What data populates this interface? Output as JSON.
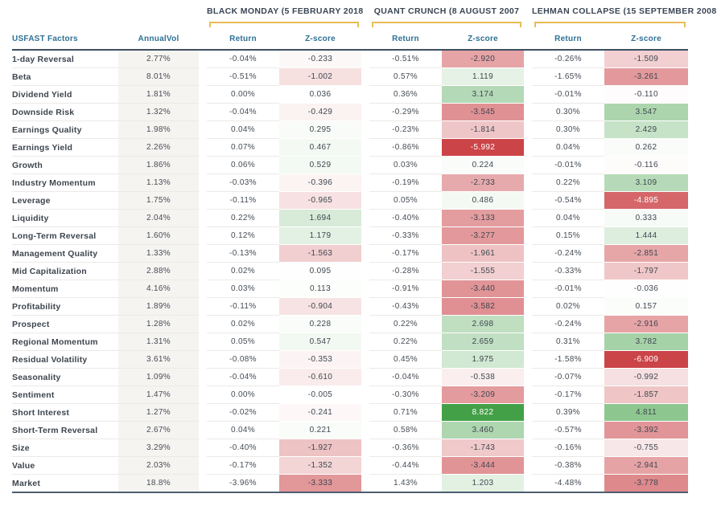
{
  "colors": {
    "header_blue": "#2e7094",
    "title_navy": "#3a4554",
    "bracket_gold": "#e9bc55",
    "positive_green_full": "#43a047",
    "negative_red_full": "#cb4448",
    "annualvol_bg": "#f6f4f1",
    "header_rule": "#3e4f60",
    "bottom_rule": "#4c5d70"
  },
  "chart_data": {
    "type": "table",
    "corner_header": "USFAST Factors",
    "annual_vol_header": "AnnualVol",
    "sub_headers": [
      "Return",
      "Z-score"
    ],
    "event_groups": [
      "BLACK MONDAY (5 FEBRUARY 2018",
      "QUANT CRUNCH (8 AUGUST 2007",
      "LEHMAN COLLAPSE (15 SEPTEMBER 2008"
    ],
    "zscore_color_scale": {
      "negative_max_abs": 6,
      "positive_max_abs": 8,
      "neutral": "#ffffff"
    },
    "rows": [
      {
        "factor": "1-day Reversal",
        "annual_vol": "2.77%",
        "values": [
          {
            "return": "-0.04%",
            "z_score": -0.233
          },
          {
            "return": "-0.51%",
            "z_score": -2.92
          },
          {
            "return": "-0.26%",
            "z_score": -1.509
          }
        ]
      },
      {
        "factor": "Beta",
        "annual_vol": "8.01%",
        "values": [
          {
            "return": "-0.51%",
            "z_score": -1.002
          },
          {
            "return": "0.57%",
            "z_score": 1.119
          },
          {
            "return": "-1.65%",
            "z_score": -3.261
          }
        ]
      },
      {
        "factor": "Dividend Yield",
        "annual_vol": "1.81%",
        "values": [
          {
            "return": "0.00%",
            "z_score": 0.036
          },
          {
            "return": "0.36%",
            "z_score": 3.174
          },
          {
            "return": "-0.01%",
            "z_score": -0.11
          }
        ]
      },
      {
        "factor": "Downside Risk",
        "annual_vol": "1.32%",
        "values": [
          {
            "return": "-0.04%",
            "z_score": -0.429
          },
          {
            "return": "-0.29%",
            "z_score": -3.545
          },
          {
            "return": "0.30%",
            "z_score": 3.547
          }
        ]
      },
      {
        "factor": "Earnings Quality",
        "annual_vol": "1.98%",
        "values": [
          {
            "return": "0.04%",
            "z_score": 0.295
          },
          {
            "return": "-0.23%",
            "z_score": -1.814
          },
          {
            "return": "0.30%",
            "z_score": 2.429
          }
        ]
      },
      {
        "factor": "Earnings Yield",
        "annual_vol": "2.26%",
        "values": [
          {
            "return": "0.07%",
            "z_score": 0.467
          },
          {
            "return": "-0.86%",
            "z_score": -5.992
          },
          {
            "return": "0.04%",
            "z_score": 0.262
          }
        ]
      },
      {
        "factor": "Growth",
        "annual_vol": "1.86%",
        "values": [
          {
            "return": "0.06%",
            "z_score": 0.529
          },
          {
            "return": "0.03%",
            "z_score": 0.224
          },
          {
            "return": "-0.01%",
            "z_score": -0.116
          }
        ]
      },
      {
        "factor": "Industry Momentum",
        "annual_vol": "1.13%",
        "values": [
          {
            "return": "-0.03%",
            "z_score": -0.396
          },
          {
            "return": "-0.19%",
            "z_score": -2.733
          },
          {
            "return": "0.22%",
            "z_score": 3.109
          }
        ]
      },
      {
        "factor": "Leverage",
        "annual_vol": "1.75%",
        "values": [
          {
            "return": "-0.11%",
            "z_score": -0.965
          },
          {
            "return": "0.05%",
            "z_score": 0.486
          },
          {
            "return": "-0.54%",
            "z_score": -4.895
          }
        ]
      },
      {
        "factor": "Liquidity",
        "annual_vol": "2.04%",
        "values": [
          {
            "return": "0.22%",
            "z_score": 1.694
          },
          {
            "return": "-0.40%",
            "z_score": -3.133
          },
          {
            "return": "0.04%",
            "z_score": 0.333
          }
        ]
      },
      {
        "factor": "Long-Term Reversal",
        "annual_vol": "1.60%",
        "values": [
          {
            "return": "0.12%",
            "z_score": 1.179
          },
          {
            "return": "-0.33%",
            "z_score": -3.277
          },
          {
            "return": "0.15%",
            "z_score": 1.444
          }
        ]
      },
      {
        "factor": "Management Quality",
        "annual_vol": "1.33%",
        "values": [
          {
            "return": "-0.13%",
            "z_score": -1.563
          },
          {
            "return": "-0.17%",
            "z_score": -1.961
          },
          {
            "return": "-0.24%",
            "z_score": -2.851
          }
        ]
      },
      {
        "factor": "Mid Capitalization",
        "annual_vol": "2.88%",
        "values": [
          {
            "return": "0.02%",
            "z_score": 0.095
          },
          {
            "return": "-0.28%",
            "z_score": -1.555
          },
          {
            "return": "-0.33%",
            "z_score": -1.797
          }
        ]
      },
      {
        "factor": "Momentum",
        "annual_vol": "4.16%",
        "values": [
          {
            "return": "0.03%",
            "z_score": 0.113
          },
          {
            "return": "-0.91%",
            "z_score": -3.44
          },
          {
            "return": "-0.01%",
            "z_score": -0.036
          }
        ]
      },
      {
        "factor": "Profitability",
        "annual_vol": "1.89%",
        "values": [
          {
            "return": "-0.11%",
            "z_score": -0.904
          },
          {
            "return": "-0.43%",
            "z_score": -3.582
          },
          {
            "return": "0.02%",
            "z_score": 0.157
          }
        ]
      },
      {
        "factor": "Prospect",
        "annual_vol": "1.28%",
        "values": [
          {
            "return": "0.02%",
            "z_score": 0.228
          },
          {
            "return": "0.22%",
            "z_score": 2.698
          },
          {
            "return": "-0.24%",
            "z_score": -2.916
          }
        ]
      },
      {
        "factor": "Regional Momentum",
        "annual_vol": "1.31%",
        "values": [
          {
            "return": "0.05%",
            "z_score": 0.547
          },
          {
            "return": "0.22%",
            "z_score": 2.659
          },
          {
            "return": "0.31%",
            "z_score": 3.782
          }
        ]
      },
      {
        "factor": "Residual Volatility",
        "annual_vol": "3.61%",
        "values": [
          {
            "return": "-0.08%",
            "z_score": -0.353
          },
          {
            "return": "0.45%",
            "z_score": 1.975
          },
          {
            "return": "-1.58%",
            "z_score": -6.909
          }
        ]
      },
      {
        "factor": "Seasonality",
        "annual_vol": "1.09%",
        "values": [
          {
            "return": "-0.04%",
            "z_score": -0.61
          },
          {
            "return": "-0.04%",
            "z_score": -0.538
          },
          {
            "return": "-0.07%",
            "z_score": -0.992
          }
        ]
      },
      {
        "factor": "Sentiment",
        "annual_vol": "1.47%",
        "values": [
          {
            "return": "0.00%",
            "z_score": -0.005
          },
          {
            "return": "-0.30%",
            "z_score": -3.209
          },
          {
            "return": "-0.17%",
            "z_score": -1.857
          }
        ]
      },
      {
        "factor": "Short Interest",
        "annual_vol": "1.27%",
        "values": [
          {
            "return": "-0.02%",
            "z_score": -0.241
          },
          {
            "return": "0.71%",
            "z_score": 8.822
          },
          {
            "return": "0.39%",
            "z_score": 4.811
          }
        ]
      },
      {
        "factor": "Short-Term Reversal",
        "annual_vol": "2.67%",
        "values": [
          {
            "return": "0.04%",
            "z_score": 0.221
          },
          {
            "return": "0.58%",
            "z_score": 3.46
          },
          {
            "return": "-0.57%",
            "z_score": -3.392
          }
        ]
      },
      {
        "factor": "Size",
        "annual_vol": "3.29%",
        "values": [
          {
            "return": "-0.40%",
            "z_score": -1.927
          },
          {
            "return": "-0.36%",
            "z_score": -1.743
          },
          {
            "return": "-0.16%",
            "z_score": -0.755
          }
        ]
      },
      {
        "factor": "Value",
        "annual_vol": "2.03%",
        "values": [
          {
            "return": "-0.17%",
            "z_score": -1.352
          },
          {
            "return": "-0.44%",
            "z_score": -3.444
          },
          {
            "return": "-0.38%",
            "z_score": -2.941
          }
        ]
      },
      {
        "factor": "Market",
        "annual_vol": "18.8%",
        "values": [
          {
            "return": "-3.96%",
            "z_score": -3.333
          },
          {
            "return": "1.43%",
            "z_score": 1.203
          },
          {
            "return": "-4.48%",
            "z_score": -3.778
          }
        ]
      }
    ]
  }
}
